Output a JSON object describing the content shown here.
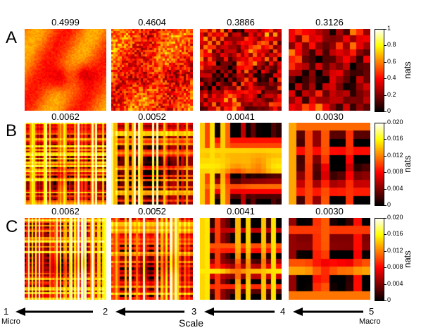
{
  "chart_data": {
    "type": "heatmap",
    "rows": [
      {
        "label": "A",
        "panel_values": [
          "0.4999",
          "0.4604",
          "0.3886",
          "0.3126"
        ],
        "colorbar_label": "nats",
        "colorbar_ticks": [
          "1",
          "0.8",
          "0.6",
          "0.4",
          "0.2",
          "0"
        ],
        "colorbar_range": [
          0,
          1
        ]
      },
      {
        "label": "B",
        "panel_values": [
          "0.0062",
          "0.0052",
          "0.0041",
          "0.0030"
        ],
        "colorbar_label": "nats",
        "colorbar_ticks": [
          "0.020",
          "0.016",
          "0.012",
          "0.008",
          "0.004",
          "0"
        ],
        "colorbar_range": [
          0,
          0.02
        ]
      },
      {
        "label": "C",
        "panel_values": [
          "0.0062",
          "0.0052",
          "0.0041",
          "0.0030"
        ],
        "colorbar_label": "nats",
        "colorbar_ticks": [
          "0.020",
          "0.016",
          "0.012",
          "0.008",
          "0.004",
          "0"
        ],
        "colorbar_range": [
          0,
          0.02
        ]
      }
    ],
    "scale_axis": {
      "label": "Scale",
      "ticks": [
        "1",
        "2",
        "3",
        "4",
        "5"
      ],
      "left_sublabel": "Micro",
      "right_sublabel": "Macro"
    },
    "colormap": "hot"
  }
}
